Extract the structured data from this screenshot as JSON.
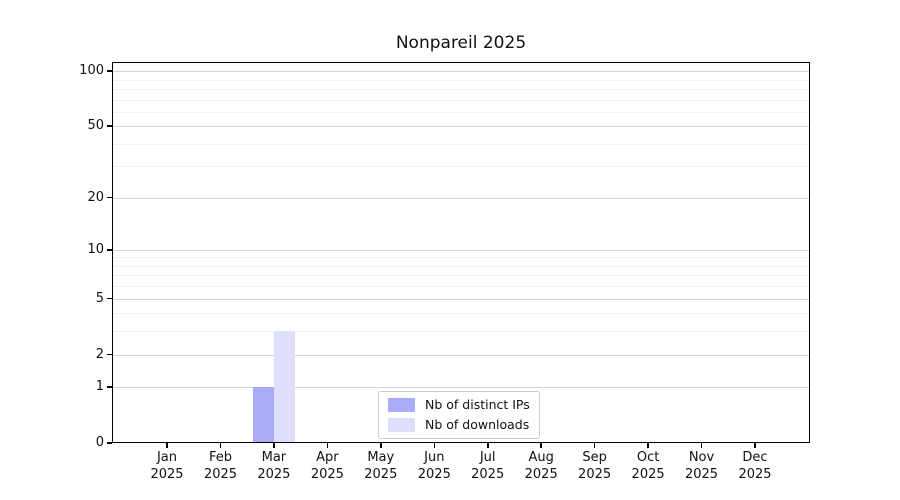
{
  "chart_data": {
    "type": "bar",
    "title": "Nonpareil 2025",
    "categories": [
      "Jan",
      "Feb",
      "Mar",
      "Apr",
      "May",
      "Jun",
      "Jul",
      "Aug",
      "Sep",
      "Oct",
      "Nov",
      "Dec"
    ],
    "category_year": "2025",
    "series": [
      {
        "name": "Nb of distinct IPs",
        "color": "#a8abf7",
        "values": [
          0,
          0,
          1,
          0,
          0,
          0,
          0,
          0,
          0,
          0,
          0,
          0
        ]
      },
      {
        "name": "Nb of downloads",
        "color": "#dcdefb",
        "values": [
          0,
          0,
          3,
          0,
          0,
          0,
          0,
          0,
          0,
          0,
          0,
          0
        ]
      }
    ],
    "y_axis": {
      "scale": "log1p",
      "major_ticks": [
        0,
        1,
        2,
        5,
        10,
        20,
        50,
        100
      ],
      "minor_ticks": [
        3,
        4,
        6,
        7,
        8,
        9,
        30,
        40,
        60,
        70,
        80,
        90
      ],
      "max": 112
    },
    "x_axis": {
      "label_format": "month-over-year"
    },
    "legend": {
      "position": "lower center"
    },
    "grid": true,
    "colors": {
      "major_grid": "#d4d4d4",
      "minor_grid": "#f0f0f0",
      "axis": "#000000",
      "background": "#ffffff"
    }
  }
}
